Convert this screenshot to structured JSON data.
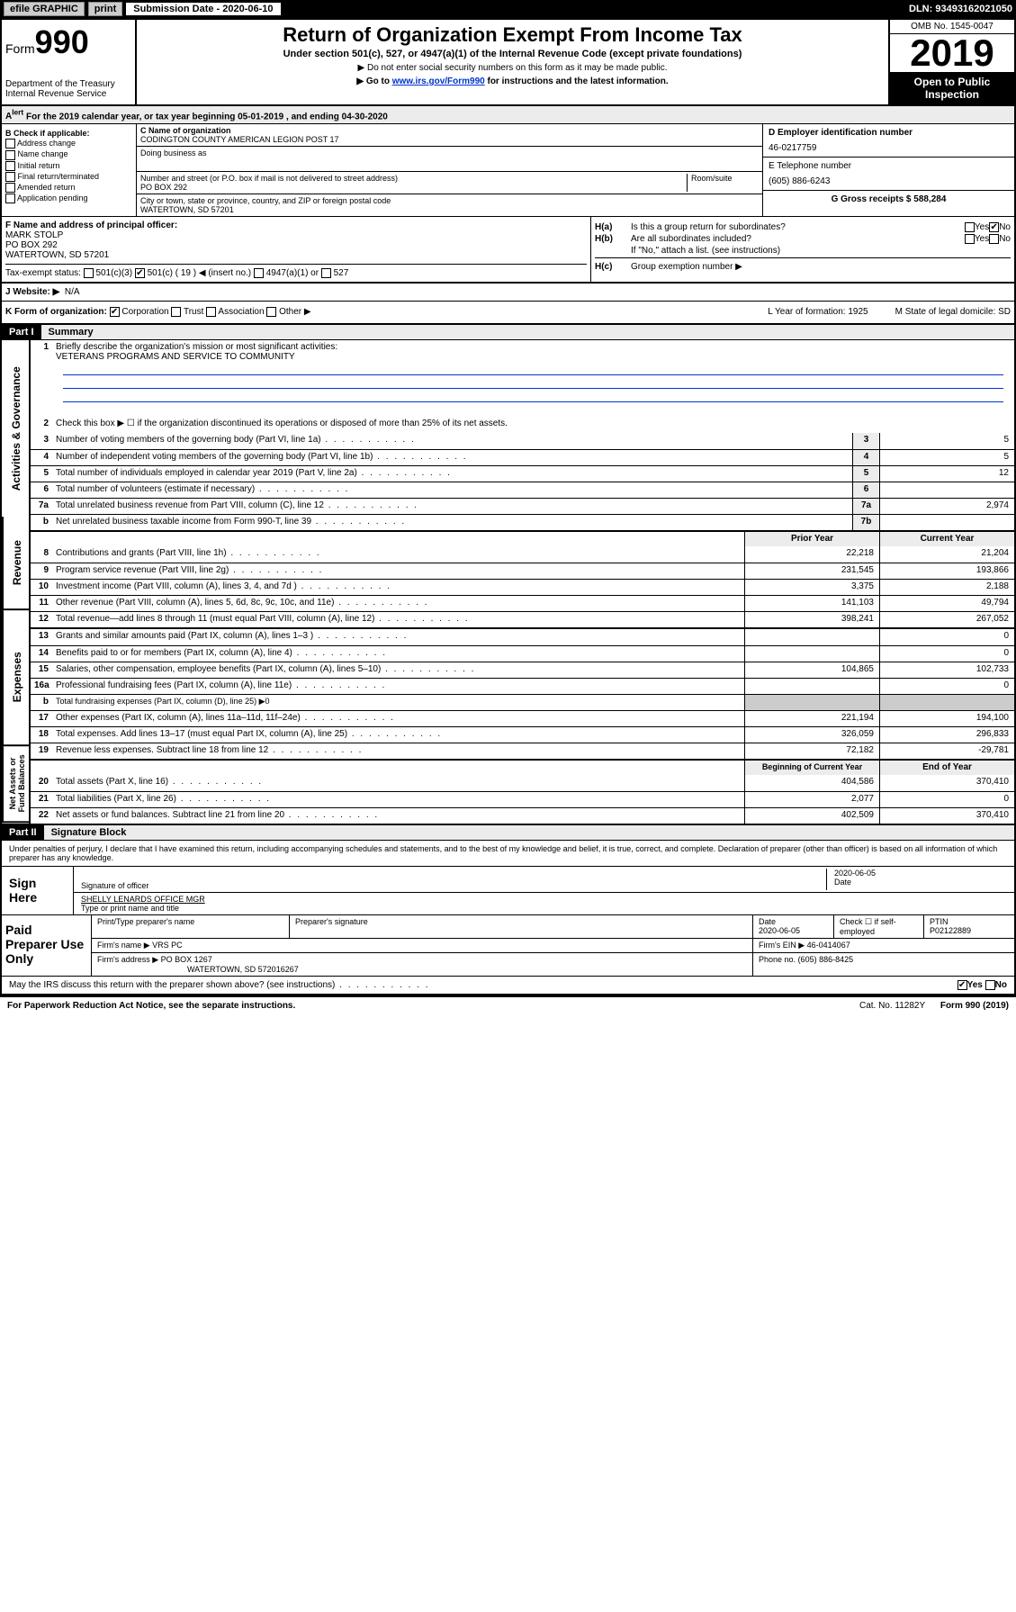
{
  "topbar": {
    "efile": "efile GRAPHIC",
    "print": "print",
    "subdate_label": "Submission Date - 2020-06-10",
    "dln": "DLN: 93493162021050"
  },
  "header": {
    "form_label": "Form",
    "form_num": "990",
    "dept": "Department of the Treasury",
    "irs": "Internal Revenue Service",
    "title": "Return of Organization Exempt From Income Tax",
    "subtitle": "Under section 501(c), 527, or 4947(a)(1) of the Internal Revenue Code (except private foundations)",
    "note1": "▶ Do not enter social security numbers on this form as it may be made public.",
    "note2_pre": "▶ Go to ",
    "note2_link": "www.irs.gov/Form990",
    "note2_post": " for instructions and the latest information.",
    "omb": "OMB No. 1545-0047",
    "year": "2019",
    "inspect": "Open to Public Inspection"
  },
  "period": {
    "text": "For the 2019 calendar year, or tax year beginning 05-01-2019    , and ending 04-30-2020"
  },
  "sectionB": {
    "label": "B Check if applicable:",
    "opts": [
      "Address change",
      "Name change",
      "Initial return",
      "Final return/terminated",
      "Amended return",
      "Application pending"
    ],
    "c_label": "C Name of organization",
    "org_name": "CODINGTON COUNTY AMERICAN LEGION POST 17",
    "dba_label": "Doing business as",
    "addr_label": "Number and street (or P.O. box if mail is not delivered to street address)",
    "room_label": "Room/suite",
    "addr": "PO BOX 292",
    "city_label": "City or town, state or province, country, and ZIP or foreign postal code",
    "city": "WATERTOWN, SD  57201",
    "d_label": "D Employer identification number",
    "ein": "46-0217759",
    "e_label": "E Telephone number",
    "phone": "(605) 886-6243",
    "g_label": "G Gross receipts $ 588,284"
  },
  "sectionF": {
    "label": "F Name and address of principal officer:",
    "name": "MARK STOLP",
    "addr": "PO BOX 292",
    "city": "WATERTOWN, SD  57201"
  },
  "sectionH": {
    "ha": "Is this a group return for subordinates?",
    "hb": "Are all subordinates included?",
    "hb_note": "If \"No,\" attach a list. (see instructions)",
    "hc": "Group exemption number ▶"
  },
  "sectionI": {
    "label": "Tax-exempt status:",
    "opt1": "501(c)(3)",
    "opt2": "501(c) ( 19 ) ◀ (insert no.)",
    "opt3": "4947(a)(1) or",
    "opt4": "527"
  },
  "sectionJ": {
    "label": "J   Website: ▶",
    "val": "N/A"
  },
  "sectionK": {
    "label": "K Form of organization:",
    "opts": [
      "Corporation",
      "Trust",
      "Association",
      "Other ▶"
    ],
    "l": "L Year of formation: 1925",
    "m": "M State of legal domicile: SD"
  },
  "part1": {
    "hdr": "Part I",
    "title": "Summary",
    "q1": "Briefly describe the organization's mission or most significant activities:",
    "mission": "VETERANS PROGRAMS AND SERVICE TO COMMUNITY",
    "q2": "Check this box ▶ ☐  if the organization discontinued its operations or disposed of more than 25% of its net assets.",
    "vtab1": "Activities & Governance",
    "vtab2": "Revenue",
    "vtab3": "Expenses",
    "vtab4": "Net Assets or Fund Balances",
    "rows_gov": [
      {
        "n": "3",
        "lbl": "Number of voting members of the governing body (Part VI, line 1a)",
        "box": "3",
        "v": "5"
      },
      {
        "n": "4",
        "lbl": "Number of independent voting members of the governing body (Part VI, line 1b)",
        "box": "4",
        "v": "5"
      },
      {
        "n": "5",
        "lbl": "Total number of individuals employed in calendar year 2019 (Part V, line 2a)",
        "box": "5",
        "v": "12"
      },
      {
        "n": "6",
        "lbl": "Total number of volunteers (estimate if necessary)",
        "box": "6",
        "v": ""
      },
      {
        "n": "7a",
        "lbl": "Total unrelated business revenue from Part VIII, column (C), line 12",
        "box": "7a",
        "v": "2,974"
      },
      {
        "n": "b",
        "lbl": "Net unrelated business taxable income from Form 990-T, line 39",
        "box": "7b",
        "v": ""
      }
    ],
    "col_prior": "Prior Year",
    "col_current": "Current Year",
    "rows_rev": [
      {
        "n": "8",
        "lbl": "Contributions and grants (Part VIII, line 1h)",
        "p": "22,218",
        "c": "21,204"
      },
      {
        "n": "9",
        "lbl": "Program service revenue (Part VIII, line 2g)",
        "p": "231,545",
        "c": "193,866"
      },
      {
        "n": "10",
        "lbl": "Investment income (Part VIII, column (A), lines 3, 4, and 7d )",
        "p": "3,375",
        "c": "2,188"
      },
      {
        "n": "11",
        "lbl": "Other revenue (Part VIII, column (A), lines 5, 6d, 8c, 9c, 10c, and 11e)",
        "p": "141,103",
        "c": "49,794"
      },
      {
        "n": "12",
        "lbl": "Total revenue—add lines 8 through 11 (must equal Part VIII, column (A), line 12)",
        "p": "398,241",
        "c": "267,052"
      }
    ],
    "rows_exp": [
      {
        "n": "13",
        "lbl": "Grants and similar amounts paid (Part IX, column (A), lines 1–3 )",
        "p": "",
        "c": "0"
      },
      {
        "n": "14",
        "lbl": "Benefits paid to or for members (Part IX, column (A), line 4)",
        "p": "",
        "c": "0"
      },
      {
        "n": "15",
        "lbl": "Salaries, other compensation, employee benefits (Part IX, column (A), lines 5–10)",
        "p": "104,865",
        "c": "102,733"
      },
      {
        "n": "16a",
        "lbl": "Professional fundraising fees (Part IX, column (A), line 11e)",
        "p": "",
        "c": "0"
      },
      {
        "n": "b",
        "lbl": "Total fundraising expenses (Part IX, column (D), line 25) ▶0",
        "p": "",
        "c": "",
        "noval": true
      },
      {
        "n": "17",
        "lbl": "Other expenses (Part IX, column (A), lines 11a–11d, 11f–24e)",
        "p": "221,194",
        "c": "194,100"
      },
      {
        "n": "18",
        "lbl": "Total expenses. Add lines 13–17 (must equal Part IX, column (A), line 25)",
        "p": "326,059",
        "c": "296,833"
      },
      {
        "n": "19",
        "lbl": "Revenue less expenses. Subtract line 18 from line 12",
        "p": "72,182",
        "c": "-29,781"
      }
    ],
    "col_begin": "Beginning of Current Year",
    "col_end": "End of Year",
    "rows_net": [
      {
        "n": "20",
        "lbl": "Total assets (Part X, line 16)",
        "p": "404,586",
        "c": "370,410"
      },
      {
        "n": "21",
        "lbl": "Total liabilities (Part X, line 26)",
        "p": "2,077",
        "c": "0"
      },
      {
        "n": "22",
        "lbl": "Net assets or fund balances. Subtract line 21 from line 20",
        "p": "402,509",
        "c": "370,410"
      }
    ]
  },
  "part2": {
    "hdr": "Part II",
    "title": "Signature Block",
    "decl": "Under penalties of perjury, I declare that I have examined this return, including accompanying schedules and statements, and to the best of my knowledge and belief, it is true, correct, and complete. Declaration of preparer (other than officer) is based on all information of which preparer has any knowledge.",
    "sign_here": "Sign Here",
    "sig_officer": "Signature of officer",
    "sig_date": "2020-06-05",
    "sig_date_lbl": "Date",
    "officer_name": "SHELLY LENARDS OFFICE MGR",
    "type_name": "Type or print name and title",
    "paid": "Paid Preparer Use Only",
    "prep_name_lbl": "Print/Type preparer's name",
    "prep_sig_lbl": "Preparer's signature",
    "prep_date_lbl": "Date",
    "prep_date": "2020-06-05",
    "check_lbl": "Check ☐ if self-employed",
    "ptin_lbl": "PTIN",
    "ptin": "P02122889",
    "firm_name_lbl": "Firm's name    ▶",
    "firm_name": "VRS PC",
    "firm_ein_lbl": "Firm's EIN ▶",
    "firm_ein": "46-0414067",
    "firm_addr_lbl": "Firm's address ▶",
    "firm_addr": "PO BOX 1267",
    "firm_city": "WATERTOWN, SD  572016267",
    "firm_phone_lbl": "Phone no.",
    "firm_phone": "(605) 886-8425",
    "discuss": "May the IRS discuss this return with the preparer shown above? (see instructions)"
  },
  "footer": {
    "pra": "For Paperwork Reduction Act Notice, see the separate instructions.",
    "cat": "Cat. No. 11282Y",
    "form": "Form 990 (2019)"
  }
}
